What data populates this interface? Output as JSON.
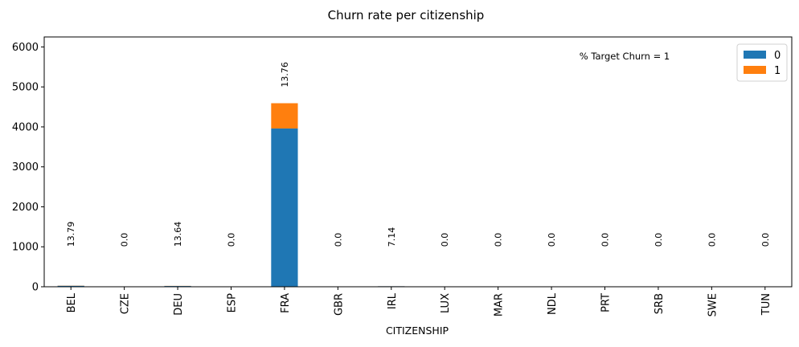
{
  "chart_data": {
    "type": "bar",
    "stacked": true,
    "title": "Churn rate per citizenship",
    "xlabel": "CITIZENSHIP",
    "ylabel": "",
    "ylim": [
      0,
      6250
    ],
    "yticks": [
      0,
      1000,
      2000,
      3000,
      4000,
      5000,
      6000
    ],
    "categories": [
      "BEL",
      "CZE",
      "DEU",
      "ESP",
      "FRA",
      "GBR",
      "IRL",
      "LUX",
      "MAR",
      "NDL",
      "PRT",
      "SRB",
      "SWE",
      "TUN"
    ],
    "series": [
      {
        "name": "0",
        "color": "#1f77b4",
        "values": [
          25,
          1,
          19,
          1,
          3960,
          1,
          13,
          1,
          1,
          1,
          1,
          1,
          1,
          1
        ]
      },
      {
        "name": "1",
        "color": "#ff7f0e",
        "values": [
          4,
          0,
          3,
          0,
          632,
          0,
          1,
          0,
          0,
          0,
          0,
          0,
          0,
          0
        ]
      }
    ],
    "annotations": [
      "13.79",
      "0.0",
      "13.64",
      "0.0",
      "13.76",
      "0.0",
      "7.14",
      "0.0",
      "0.0",
      "0.0",
      "0.0",
      "0.0",
      "0.0",
      "0.0"
    ],
    "annotation_title": "% Target Churn = 1",
    "legend": {
      "placement": "top-right",
      "entries": [
        "0",
        "1"
      ]
    },
    "grid": false
  }
}
